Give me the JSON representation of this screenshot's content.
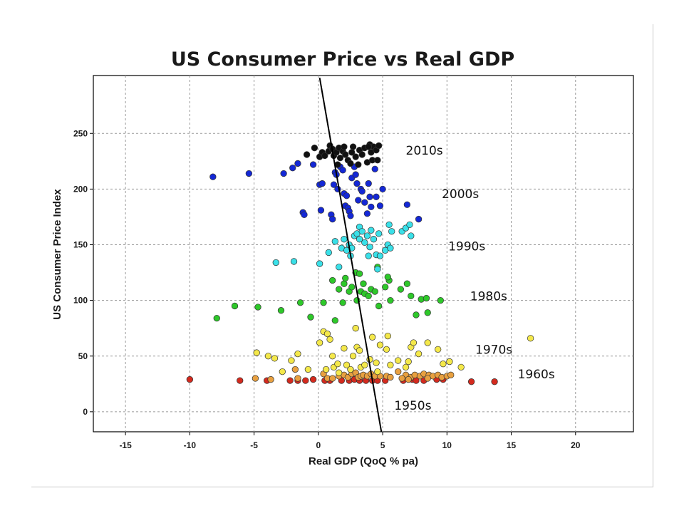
{
  "chart_data": {
    "type": "scatter",
    "title": "US Consumer Price vs Real GDP",
    "xlabel": "Real GDP (QoQ % pa)",
    "ylabel": "US Consumer Price Index",
    "xlim": [
      -17.5,
      24.5
    ],
    "ylim": [
      -18,
      302
    ],
    "xticks": [
      -15,
      -10,
      -5,
      0,
      5,
      10,
      15,
      20
    ],
    "yticks": [
      0,
      50,
      100,
      150,
      200,
      250
    ],
    "grid": true,
    "trendline": {
      "x1": 0.1,
      "y1": 300,
      "x2": 4.9,
      "y2": -18
    },
    "annotations": [
      {
        "text": "2010s",
        "x": 6.8,
        "y": 231
      },
      {
        "text": "2000s",
        "x": 9.6,
        "y": 192
      },
      {
        "text": "1990s",
        "x": 10.1,
        "y": 145
      },
      {
        "text": "1980s",
        "x": 11.8,
        "y": 100
      },
      {
        "text": "1970s",
        "x": 12.2,
        "y": 52
      },
      {
        "text": "1960s",
        "x": 15.5,
        "y": 30
      },
      {
        "text": "1950s",
        "x": 5.9,
        "y": 2
      }
    ],
    "series": [
      {
        "name": "1950s",
        "color": "#d42a1e",
        "points": [
          [
            -10,
            29
          ],
          [
            -6.1,
            28
          ],
          [
            -4,
            28
          ],
          [
            -2.2,
            28
          ],
          [
            -1.6,
            28
          ],
          [
            -1,
            28
          ],
          [
            -0.4,
            29
          ],
          [
            0.5,
            28
          ],
          [
            0.9,
            28
          ],
          [
            1.8,
            28
          ],
          [
            2.4,
            28
          ],
          [
            2.8,
            29
          ],
          [
            3.2,
            28
          ],
          [
            3.7,
            28
          ],
          [
            4.2,
            28
          ],
          [
            4.6,
            28
          ],
          [
            5.2,
            28
          ],
          [
            6.6,
            28
          ],
          [
            7.3,
            29
          ],
          [
            7.6,
            28
          ],
          [
            8.2,
            28
          ],
          [
            9.2,
            29
          ],
          [
            9.7,
            29
          ],
          [
            11.9,
            27
          ],
          [
            13.7,
            27
          ]
        ]
      },
      {
        "name": "1960s",
        "color": "#e8a040",
        "points": [
          [
            -4.9,
            30
          ],
          [
            -3.7,
            29
          ],
          [
            -1.8,
            38
          ],
          [
            -1.6,
            30
          ],
          [
            0.4,
            34
          ],
          [
            0.7,
            30
          ],
          [
            1.1,
            30
          ],
          [
            1.6,
            32
          ],
          [
            2,
            33
          ],
          [
            2.3,
            31
          ],
          [
            2.6,
            34
          ],
          [
            2.9,
            35
          ],
          [
            3.1,
            31
          ],
          [
            3.3,
            32
          ],
          [
            3.5,
            33
          ],
          [
            3.8,
            32
          ],
          [
            4.1,
            34
          ],
          [
            4.4,
            32
          ],
          [
            4.8,
            32
          ],
          [
            5.3,
            32
          ],
          [
            5.6,
            31
          ],
          [
            6.2,
            36
          ],
          [
            6.8,
            33
          ],
          [
            7.2,
            31
          ],
          [
            7.5,
            33
          ],
          [
            7.9,
            32
          ],
          [
            8.2,
            34
          ],
          [
            8.6,
            33
          ],
          [
            8.9,
            32
          ],
          [
            9.3,
            33
          ],
          [
            9.6,
            31
          ],
          [
            10,
            32
          ],
          [
            10.3,
            33
          ],
          [
            6.5,
            30
          ],
          [
            7,
            29
          ],
          [
            8.5,
            30
          ]
        ]
      },
      {
        "name": "1970s",
        "color": "#f4e84a",
        "points": [
          [
            -4.8,
            53
          ],
          [
            -3.9,
            50
          ],
          [
            -3.4,
            48
          ],
          [
            -2.8,
            36
          ],
          [
            -2.1,
            46
          ],
          [
            -1.6,
            52
          ],
          [
            -0.8,
            38
          ],
          [
            0.1,
            62
          ],
          [
            0.4,
            72
          ],
          [
            0.7,
            70
          ],
          [
            0.9,
            65
          ],
          [
            1.1,
            50
          ],
          [
            1.2,
            40
          ],
          [
            1.5,
            43
          ],
          [
            1.6,
            35
          ],
          [
            2,
            57
          ],
          [
            2.2,
            42
          ],
          [
            2.5,
            38
          ],
          [
            2.9,
            75
          ],
          [
            3,
            58
          ],
          [
            3.2,
            55
          ],
          [
            3.3,
            40
          ],
          [
            3.6,
            42
          ],
          [
            4,
            47
          ],
          [
            4.2,
            67
          ],
          [
            4.5,
            44
          ],
          [
            4.8,
            60
          ],
          [
            5.3,
            56
          ],
          [
            5.4,
            68
          ],
          [
            5.6,
            42
          ],
          [
            6.2,
            46
          ],
          [
            7,
            45
          ],
          [
            7.2,
            58
          ],
          [
            7.4,
            62
          ],
          [
            7.8,
            52
          ],
          [
            8.5,
            62
          ],
          [
            9.3,
            56
          ],
          [
            9.7,
            43
          ],
          [
            10.2,
            45
          ],
          [
            11.1,
            40
          ],
          [
            16.5,
            66
          ],
          [
            0.6,
            38
          ],
          [
            2.7,
            50
          ],
          [
            4.6,
            36
          ],
          [
            6.8,
            40
          ]
        ]
      },
      {
        "name": "1980s",
        "color": "#2ec82a",
        "points": [
          [
            -7.9,
            84
          ],
          [
            -6.5,
            95
          ],
          [
            -4.7,
            94
          ],
          [
            -2.9,
            91
          ],
          [
            -1.4,
            98
          ],
          [
            -0.6,
            85
          ],
          [
            0.4,
            98
          ],
          [
            1.1,
            118
          ],
          [
            1.3,
            82
          ],
          [
            1.6,
            110
          ],
          [
            2,
            115
          ],
          [
            2.1,
            120
          ],
          [
            2.4,
            108
          ],
          [
            2.6,
            112
          ],
          [
            2.9,
            125
          ],
          [
            3,
            100
          ],
          [
            3.2,
            124
          ],
          [
            3.3,
            108
          ],
          [
            3.6,
            106
          ],
          [
            3.9,
            104
          ],
          [
            4.1,
            110
          ],
          [
            4.4,
            108
          ],
          [
            4.6,
            130
          ],
          [
            4.7,
            95
          ],
          [
            5.2,
            112
          ],
          [
            5.5,
            118
          ],
          [
            5.6,
            100
          ],
          [
            6.4,
            110
          ],
          [
            6.9,
            115
          ],
          [
            7.2,
            104
          ],
          [
            7.6,
            87
          ],
          [
            8,
            101
          ],
          [
            8.4,
            102
          ],
          [
            8.5,
            89
          ],
          [
            9.5,
            100
          ],
          [
            1.9,
            98
          ],
          [
            3.5,
            115
          ],
          [
            5.4,
            121
          ]
        ]
      },
      {
        "name": "1990s",
        "color": "#3ae0e8",
        "points": [
          [
            -3.3,
            134
          ],
          [
            -1.9,
            135
          ],
          [
            0.1,
            133
          ],
          [
            0.8,
            143
          ],
          [
            1.3,
            153
          ],
          [
            1.6,
            130
          ],
          [
            1.8,
            147
          ],
          [
            2,
            155
          ],
          [
            2.2,
            145
          ],
          [
            2.4,
            150
          ],
          [
            2.6,
            147
          ],
          [
            2.8,
            158
          ],
          [
            3,
            160
          ],
          [
            3.2,
            166
          ],
          [
            3.4,
            162
          ],
          [
            3.6,
            152
          ],
          [
            3.8,
            158
          ],
          [
            4,
            148
          ],
          [
            4.1,
            163
          ],
          [
            4.3,
            155
          ],
          [
            4.5,
            141
          ],
          [
            4.6,
            128
          ],
          [
            4.8,
            140
          ],
          [
            5.2,
            145
          ],
          [
            5.4,
            150
          ],
          [
            5.5,
            168
          ],
          [
            5.7,
            162
          ],
          [
            6.5,
            162
          ],
          [
            6.8,
            165
          ],
          [
            7.1,
            168
          ],
          [
            7.2,
            158
          ],
          [
            3.9,
            140
          ],
          [
            2.5,
            140
          ],
          [
            3.2,
            155
          ],
          [
            4.7,
            160
          ],
          [
            5.6,
            147
          ]
        ]
      },
      {
        "name": "2000s",
        "color": "#1428d6",
        "points": [
          [
            -8.2,
            211
          ],
          [
            -5.4,
            214
          ],
          [
            -2.7,
            214
          ],
          [
            -2,
            219
          ],
          [
            -1.6,
            223
          ],
          [
            -1.2,
            179
          ],
          [
            -1.1,
            177
          ],
          [
            0.1,
            204
          ],
          [
            0.2,
            181
          ],
          [
            0.3,
            205
          ],
          [
            1,
            177
          ],
          [
            1.1,
            173
          ],
          [
            1.2,
            204
          ],
          [
            1.3,
            215
          ],
          [
            1.4,
            213
          ],
          [
            1.7,
            220
          ],
          [
            1.9,
            217
          ],
          [
            2,
            196
          ],
          [
            2.1,
            185
          ],
          [
            2.2,
            194
          ],
          [
            2.3,
            183
          ],
          [
            2.4,
            180
          ],
          [
            2.5,
            176
          ],
          [
            2.6,
            210
          ],
          [
            2.8,
            220
          ],
          [
            3,
            205
          ],
          [
            3.1,
            190
          ],
          [
            3.3,
            200
          ],
          [
            3.4,
            198
          ],
          [
            3.6,
            188
          ],
          [
            3.8,
            178
          ],
          [
            4,
            193
          ],
          [
            4.1,
            184
          ],
          [
            4.4,
            218
          ],
          [
            4.5,
            193
          ],
          [
            4.8,
            185
          ],
          [
            5,
            200
          ],
          [
            6.9,
            186
          ],
          [
            7.8,
            173
          ],
          [
            -0.4,
            222
          ],
          [
            1.5,
            200
          ],
          [
            2.9,
            213
          ],
          [
            3.9,
            205
          ]
        ]
      },
      {
        "name": "2010s",
        "color": "#111111",
        "points": [
          [
            -0.9,
            231
          ],
          [
            -0.3,
            237
          ],
          [
            0.1,
            229
          ],
          [
            0.3,
            233
          ],
          [
            0.5,
            230
          ],
          [
            0.8,
            234
          ],
          [
            0.9,
            239
          ],
          [
            1.1,
            236
          ],
          [
            1.2,
            230
          ],
          [
            1.4,
            233
          ],
          [
            1.6,
            237
          ],
          [
            1.7,
            228
          ],
          [
            1.9,
            234
          ],
          [
            2,
            238
          ],
          [
            2.1,
            231
          ],
          [
            2.3,
            226
          ],
          [
            2.5,
            223
          ],
          [
            2.7,
            238
          ],
          [
            2.9,
            229
          ],
          [
            3.1,
            222
          ],
          [
            3.2,
            235
          ],
          [
            3.4,
            231
          ],
          [
            3.6,
            237
          ],
          [
            3.8,
            224
          ],
          [
            4,
            240
          ],
          [
            4.1,
            233
          ],
          [
            4.2,
            226
          ],
          [
            4.3,
            238
          ],
          [
            4.5,
            235
          ],
          [
            4.6,
            226
          ],
          [
            4.7,
            239
          ],
          [
            1.5,
            222
          ],
          [
            2.6,
            233
          ],
          [
            3.9,
            238
          ]
        ]
      }
    ]
  }
}
